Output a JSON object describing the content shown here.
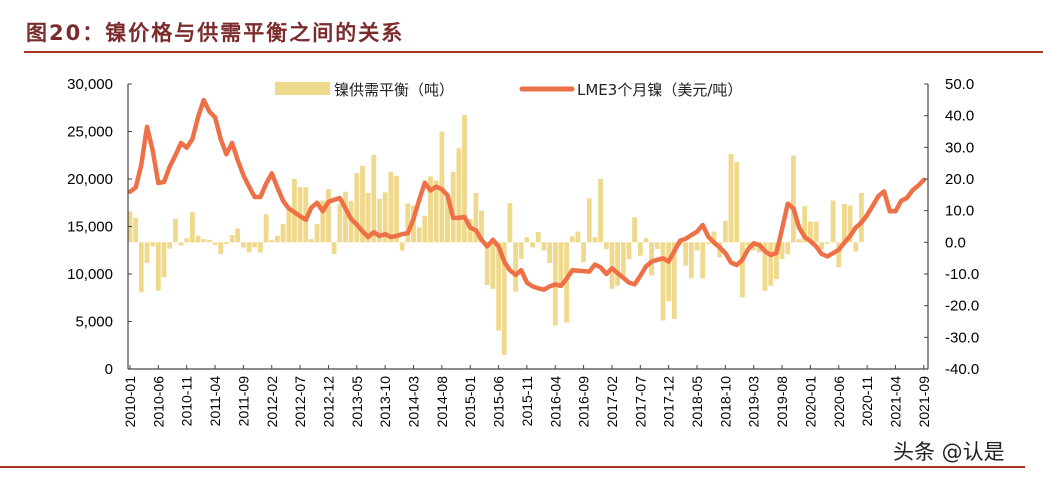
{
  "title": "图20：镍价格与供需平衡之间的关系",
  "watermark": "头条 @认是",
  "chart_data": {
    "type": "bar+line",
    "title": "图20：镍价格与供需平衡之间的关系",
    "x_start": "2010-01",
    "x_end": "2021-09",
    "x_frequency": "monthly",
    "x_tick_labels": [
      "2010-01",
      "2010-06",
      "2010-11",
      "2011-04",
      "2011-09",
      "2012-02",
      "2012-07",
      "2012-12",
      "2013-05",
      "2013-10",
      "2014-03",
      "2014-08",
      "2015-01",
      "2015-06",
      "2015-11",
      "2016-04",
      "2016-09",
      "2017-02",
      "2017-07",
      "2017-12",
      "2018-05",
      "2018-10",
      "2019-03",
      "2019-08",
      "2020-01",
      "2020-06",
      "2020-11",
      "2021-04",
      "2021-09"
    ],
    "left_axis": {
      "ylim": [
        0,
        30000
      ],
      "tick_labels": [
        "0",
        "5,000",
        "10,000",
        "15,000",
        "20,000",
        "25,000",
        "30,000"
      ]
    },
    "right_axis": {
      "ylim": [
        -40,
        50
      ],
      "tick_labels": [
        "-40.0",
        "-30.0",
        "-20.0",
        "-10.0",
        "0.0",
        "10.0",
        "20.0",
        "30.0",
        "40.0",
        "50.0"
      ]
    },
    "legend_position": "top",
    "series": [
      {
        "name": "镍供需平衡（吨）",
        "kind": "bar",
        "axis": "right",
        "color": "#EFD98C",
        "start": "2010-01",
        "values": [
          9.7,
          7.7,
          -15.8,
          -6.5,
          -1.3,
          -15.3,
          -11,
          -2,
          7.4,
          -1,
          1.3,
          9.5,
          2.1,
          1,
          0.8,
          -0.8,
          -3.7,
          -0.5,
          2.3,
          4.4,
          -1.6,
          -3.2,
          -1.6,
          -3.2,
          8.9,
          0.8,
          2.1,
          5.8,
          10.5,
          20,
          17.4,
          17.4,
          1,
          5.8,
          13.2,
          16.8,
          -3.7,
          12,
          16,
          13,
          21.9,
          24.2,
          15.6,
          27.6,
          13.7,
          15.8,
          22.3,
          21,
          -2.6,
          12.3,
          11.6,
          4.7,
          8.4,
          20.8,
          19.5,
          35,
          14.7,
          22.3,
          29.7,
          40.2,
          7.4,
          15.6,
          10,
          -13.5,
          -14.7,
          -27.9,
          -35.6,
          12.4,
          -15.6,
          -5.3,
          1.6,
          -1.6,
          3.2,
          -2.6,
          -6.5,
          -26.3,
          -14.2,
          -25.3,
          1.9,
          3.4,
          -6.3,
          13.9,
          1.6,
          20,
          -2.1,
          -14.7,
          -13.7,
          -11,
          -5.3,
          7.9,
          -4.2,
          1.3,
          -10.5,
          -2.1,
          -24.7,
          -18.6,
          -24.2,
          -1,
          -7.4,
          -11.4,
          -2.6,
          -11.4,
          -0.5,
          3.4,
          -4.7,
          6.8,
          27.9,
          25.4,
          -17.4,
          -1,
          -2.6,
          -3.2,
          -15.3,
          -13.7,
          -11.6,
          -5.3,
          -3.7,
          27.4,
          1,
          11.4,
          6.5,
          6.5,
          -2.1,
          -0.5,
          13.2,
          -7.9,
          12.1,
          11.6,
          -2.9,
          15.6
        ]
      },
      {
        "name": "LME3个月镍（美元/吨）",
        "kind": "line",
        "axis": "left",
        "color": "#EE7047",
        "start": "2010-01",
        "values": [
          18660,
          19100,
          21500,
          25500,
          23000,
          19580,
          19700,
          21300,
          22500,
          23800,
          23300,
          24200,
          26500,
          28300,
          27100,
          26500,
          24200,
          22600,
          23800,
          22000,
          20400,
          19200,
          18100,
          18100,
          19500,
          20600,
          19100,
          17700,
          16900,
          16500,
          16100,
          15700,
          17000,
          17500,
          16600,
          17600,
          17800,
          18000,
          16900,
          15800,
          15200,
          14500,
          13900,
          14400,
          14000,
          14200,
          13900,
          14000,
          14200,
          14300,
          15800,
          17800,
          19600,
          18800,
          19200,
          18900,
          18300,
          15900,
          15900,
          16000,
          14900,
          14600,
          13600,
          12900,
          13600,
          12900,
          11300,
          10400,
          9900,
          10400,
          9100,
          8700,
          8500,
          8350,
          8700,
          8900,
          8750,
          9500,
          10400,
          10350,
          10300,
          10250,
          11000,
          10700,
          10000,
          10600,
          10100,
          9600,
          9100,
          8900,
          9800,
          10800,
          11300,
          11500,
          11650,
          11300,
          12400,
          13500,
          13700,
          14100,
          14450,
          15160,
          13930,
          13300,
          12800,
          12200,
          11200,
          10950,
          11500,
          12600,
          13230,
          13060,
          12400,
          12000,
          12200,
          14700,
          17400,
          16910,
          14900,
          13900,
          13450,
          12900,
          12100,
          11850,
          12200,
          12550,
          13300,
          14000,
          14900,
          15400,
          16200,
          17200,
          18200,
          18700,
          16600,
          16600,
          17700,
          18000,
          18800,
          19300,
          19900
        ]
      }
    ]
  }
}
